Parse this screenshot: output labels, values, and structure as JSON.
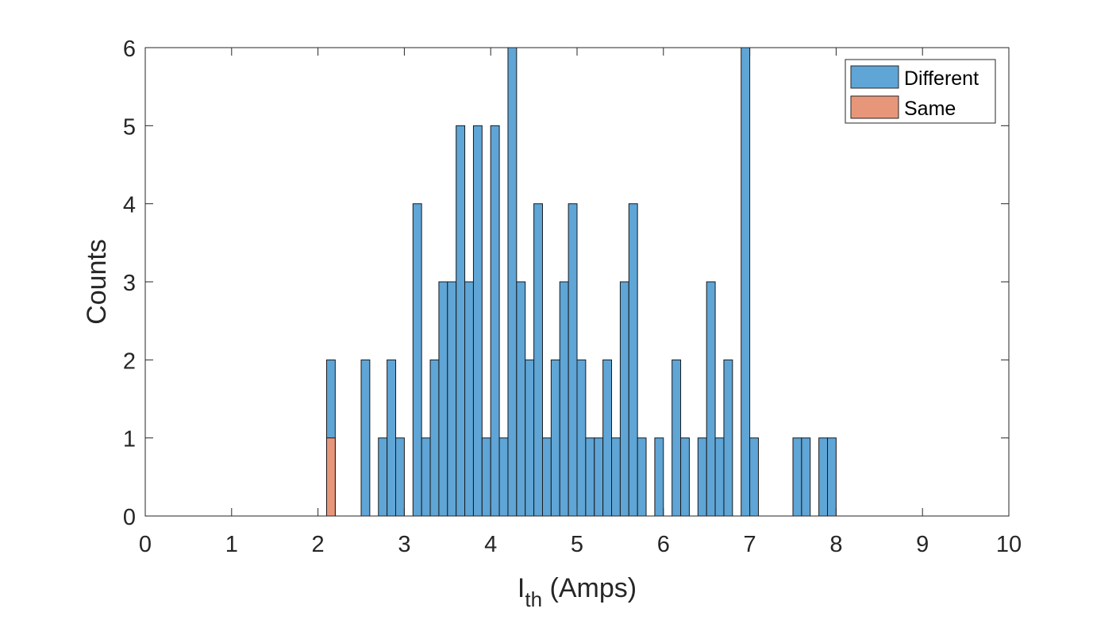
{
  "chart_data": {
    "type": "bar",
    "xlabel_main": "I",
    "xlabel_sub": "th",
    "xlabel_rest": " (Amps)",
    "ylabel": "Counts",
    "xlim": [
      0,
      10
    ],
    "ylim": [
      0,
      6
    ],
    "xticks": [
      "0",
      "1",
      "2",
      "3",
      "4",
      "5",
      "6",
      "7",
      "8",
      "9",
      "10"
    ],
    "yticks": [
      "0",
      "1",
      "2",
      "3",
      "4",
      "5",
      "6"
    ],
    "bin_width": 0.1,
    "legend_position": "top-right",
    "series": [
      {
        "name": "Different",
        "color": "#5fa5d6",
        "bins": [
          {
            "x": 2.1,
            "y": 2
          },
          {
            "x": 2.5,
            "y": 2
          },
          {
            "x": 2.7,
            "y": 1
          },
          {
            "x": 2.8,
            "y": 2
          },
          {
            "x": 2.9,
            "y": 1
          },
          {
            "x": 3.1,
            "y": 4
          },
          {
            "x": 3.2,
            "y": 1
          },
          {
            "x": 3.3,
            "y": 2
          },
          {
            "x": 3.4,
            "y": 3
          },
          {
            "x": 3.5,
            "y": 3
          },
          {
            "x": 3.6,
            "y": 5
          },
          {
            "x": 3.7,
            "y": 3
          },
          {
            "x": 3.8,
            "y": 5
          },
          {
            "x": 3.9,
            "y": 1
          },
          {
            "x": 4.0,
            "y": 5
          },
          {
            "x": 4.1,
            "y": 1
          },
          {
            "x": 4.2,
            "y": 6
          },
          {
            "x": 4.3,
            "y": 3
          },
          {
            "x": 4.4,
            "y": 2
          },
          {
            "x": 4.5,
            "y": 4
          },
          {
            "x": 4.6,
            "y": 1
          },
          {
            "x": 4.7,
            "y": 2
          },
          {
            "x": 4.8,
            "y": 3
          },
          {
            "x": 4.9,
            "y": 4
          },
          {
            "x": 5.0,
            "y": 2
          },
          {
            "x": 5.1,
            "y": 1
          },
          {
            "x": 5.2,
            "y": 1
          },
          {
            "x": 5.3,
            "y": 2
          },
          {
            "x": 5.4,
            "y": 1
          },
          {
            "x": 5.5,
            "y": 3
          },
          {
            "x": 5.6,
            "y": 4
          },
          {
            "x": 5.7,
            "y": 1
          },
          {
            "x": 5.9,
            "y": 1
          },
          {
            "x": 6.1,
            "y": 2
          },
          {
            "x": 6.2,
            "y": 1
          },
          {
            "x": 6.4,
            "y": 1
          },
          {
            "x": 6.5,
            "y": 3
          },
          {
            "x": 6.6,
            "y": 1
          },
          {
            "x": 6.7,
            "y": 2
          },
          {
            "x": 6.9,
            "y": 6
          },
          {
            "x": 7.0,
            "y": 1
          },
          {
            "x": 7.5,
            "y": 1
          },
          {
            "x": 7.6,
            "y": 1
          },
          {
            "x": 7.8,
            "y": 1
          },
          {
            "x": 7.9,
            "y": 1
          }
        ]
      },
      {
        "name": "Same",
        "color": "#e8967a",
        "bins": [
          {
            "x": 2.1,
            "y": 1
          }
        ]
      }
    ]
  }
}
